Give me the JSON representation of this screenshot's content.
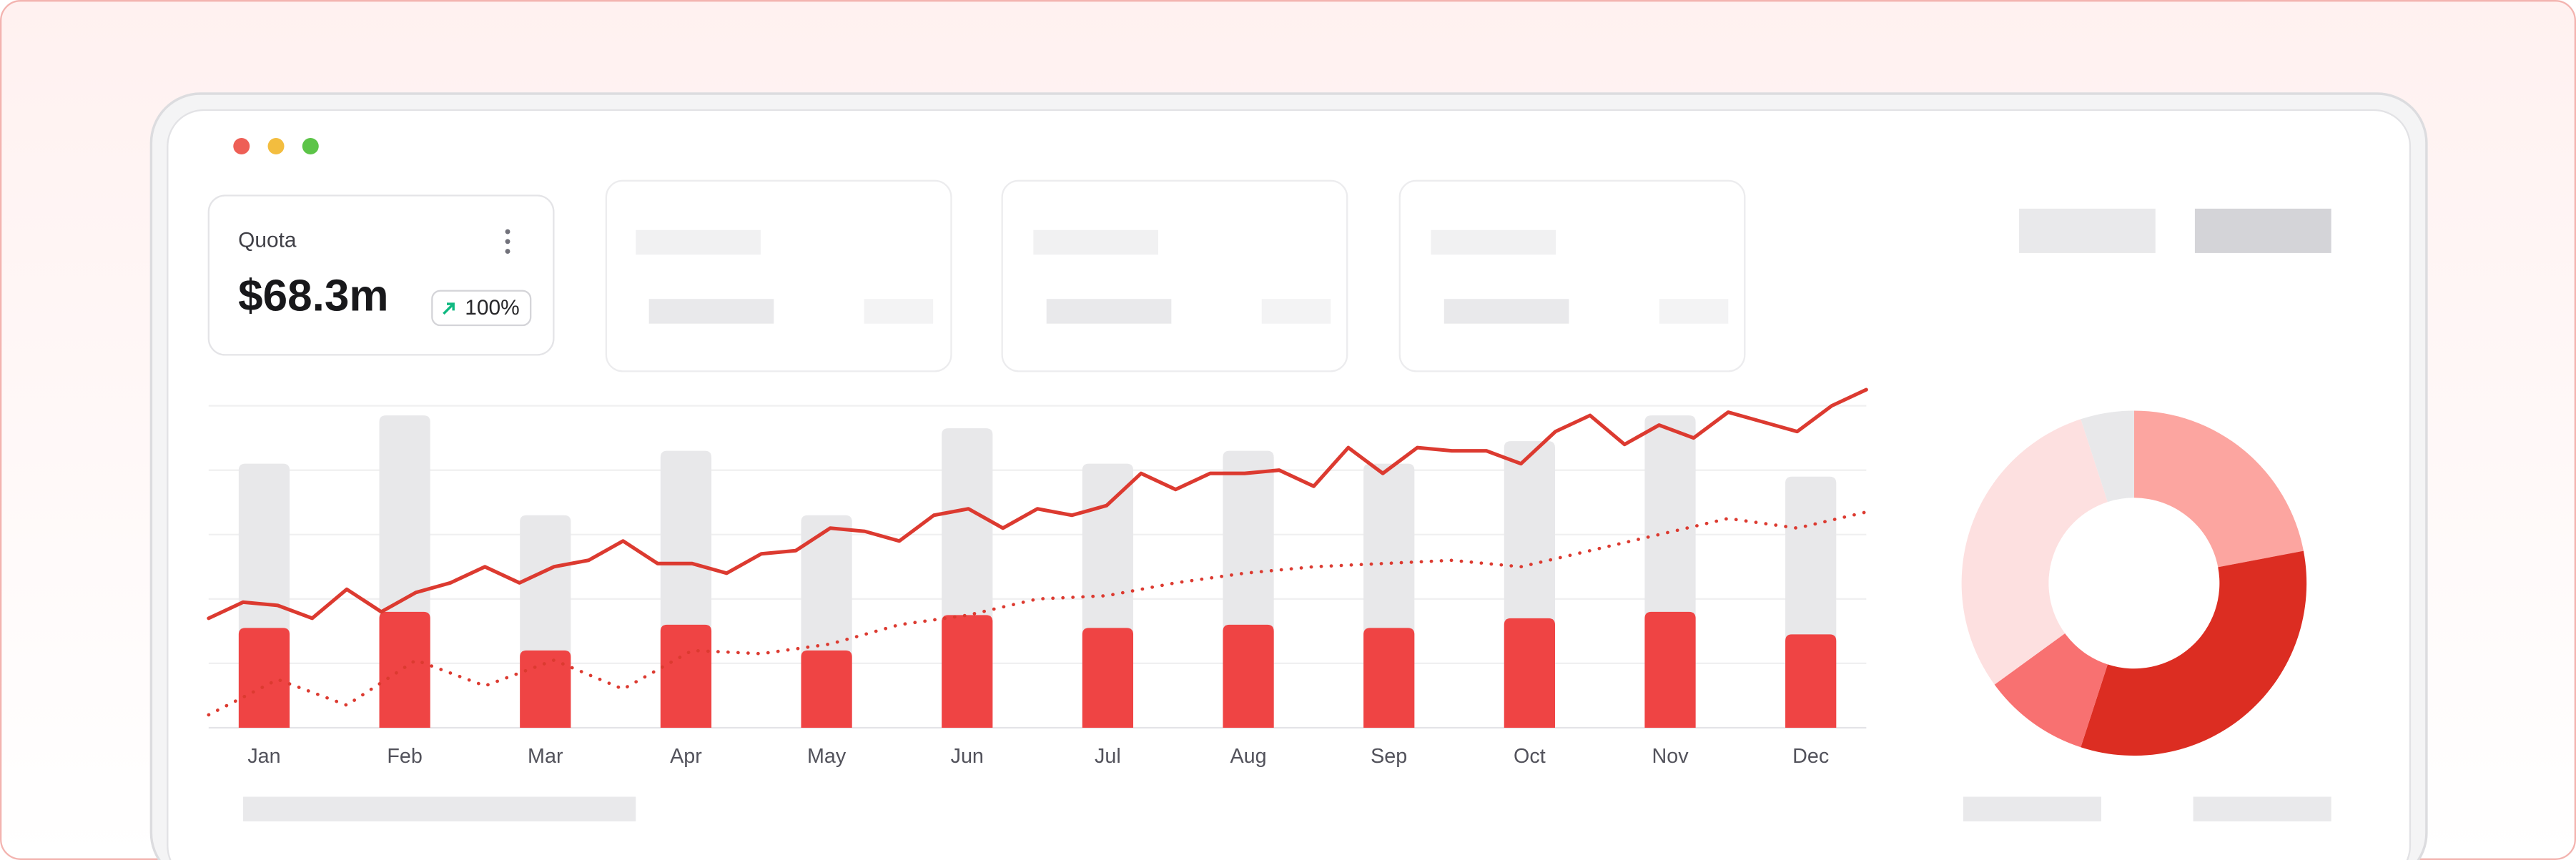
{
  "card": {
    "title": "Quota",
    "value": "$68.3m",
    "badge": "100%"
  },
  "chart_data": [
    {
      "type": "bar",
      "categories": [
        "Jan",
        "Feb",
        "Mar",
        "Apr",
        "May",
        "Jun",
        "Jul",
        "Aug",
        "Sep",
        "Oct",
        "Nov",
        "Dec"
      ],
      "ylim": [
        0,
        100
      ],
      "yticks": [
        0,
        20,
        40,
        60,
        80,
        100
      ],
      "grid": true,
      "xlim": [
        0,
        48
      ],
      "series": [
        {
          "type": "bar",
          "color": "#e8e8ea",
          "values": [
            82,
            97,
            66,
            86,
            66,
            93,
            82,
            86,
            82,
            89,
            97,
            78
          ]
        },
        {
          "type": "bar",
          "color": "#ef4444",
          "values": [
            31,
            36,
            24,
            32,
            24,
            35,
            31,
            32,
            31,
            34,
            36,
            29
          ]
        },
        {
          "type": "line",
          "color": "#dc3a30",
          "dash": "solid",
          "x": [
            0,
            1,
            2,
            3,
            4,
            5,
            6,
            7,
            8,
            9,
            10,
            11,
            12,
            13,
            14,
            15,
            16,
            17,
            18,
            19,
            20,
            21,
            22,
            23,
            24,
            25,
            26,
            27,
            28,
            29,
            30,
            31,
            32,
            33,
            34,
            35,
            36,
            37,
            38,
            39,
            40,
            41,
            42,
            43,
            44,
            45,
            46,
            47,
            48
          ],
          "values": [
            34,
            39,
            38,
            34,
            43,
            36,
            42,
            45,
            50,
            45,
            50,
            52,
            58,
            51,
            51,
            48,
            54,
            55,
            62,
            61,
            58,
            66,
            68,
            62,
            68,
            66,
            69,
            79,
            74,
            79,
            79,
            80,
            75,
            87,
            79,
            87,
            86,
            86,
            82,
            92,
            97,
            88,
            94,
            90,
            98,
            95,
            92,
            100,
            105
          ]
        },
        {
          "type": "line",
          "color": "#dc3a30",
          "dash": "dotted",
          "x": [
            0,
            2,
            4,
            6,
            8,
            10,
            12,
            14,
            16,
            18,
            20,
            22,
            24,
            26,
            28,
            30,
            32,
            34,
            36,
            38,
            40,
            42,
            44,
            46,
            48
          ],
          "values": [
            4,
            15,
            7,
            21,
            13,
            21,
            12,
            24,
            23,
            26,
            32,
            35,
            40,
            41,
            45,
            48,
            50,
            51,
            52,
            50,
            55,
            60,
            65,
            62,
            67
          ]
        }
      ]
    },
    {
      "type": "pie",
      "donut": true,
      "values": [
        22,
        33,
        10,
        30,
        5
      ],
      "colors": [
        "#fca5a0",
        "#dc2d22",
        "#f87171",
        "#fde0e0",
        "#e8e8ea"
      ]
    }
  ]
}
